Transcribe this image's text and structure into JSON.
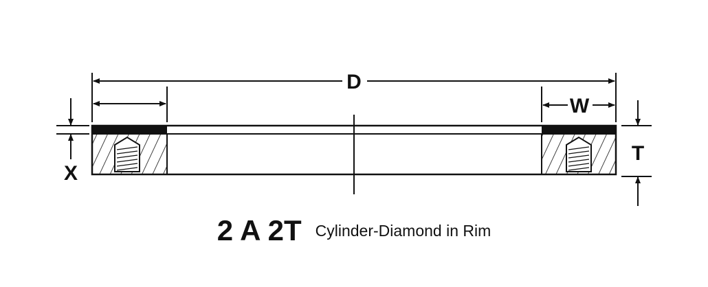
{
  "dimensions": {
    "diameter": "D",
    "width": "W",
    "thickness": "T",
    "depth": "X"
  },
  "caption": {
    "code": "2 A 2T",
    "description": "Cylinder-Diamond in Rim"
  },
  "colors": {
    "line": "#111111",
    "background": "#ffffff"
  }
}
